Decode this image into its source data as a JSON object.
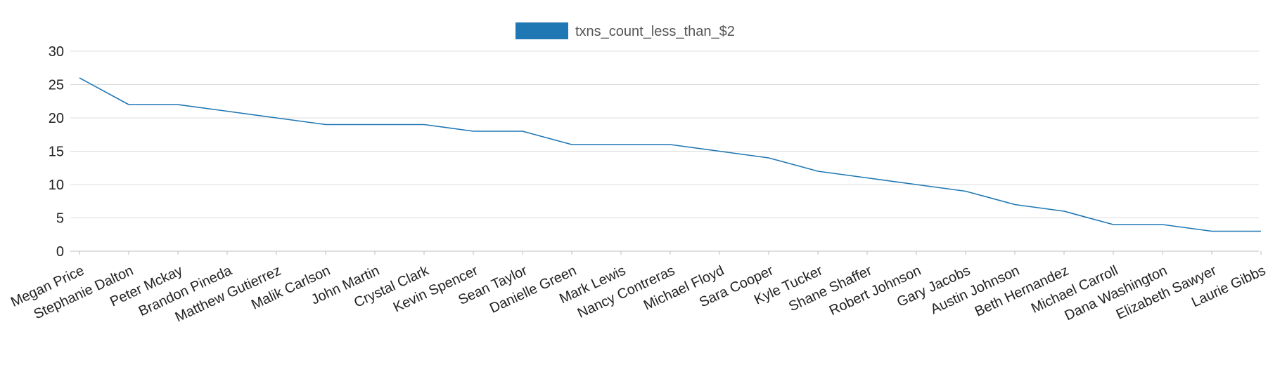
{
  "chart_data": {
    "type": "line",
    "categories": [
      "Megan Price",
      "Stephanie Dalton",
      "Peter Mckay",
      "Brandon Pineda",
      "Matthew Gutierrez",
      "Malik Carlson",
      "John Martin",
      "Crystal Clark",
      "Kevin Spencer",
      "Sean Taylor",
      "Danielle Green",
      "Mark Lewis",
      "Nancy Contreras",
      "Michael Floyd",
      "Sara Cooper",
      "Kyle Tucker",
      "Shane Shaffer",
      "Robert Johnson",
      "Gary Jacobs",
      "Austin Johnson",
      "Beth Hernandez",
      "Michael Carroll",
      "Dana Washington",
      "Elizabeth Sawyer",
      "Laurie Gibbs"
    ],
    "series": [
      {
        "name": "txns_count_less_than_$2",
        "color": "#1f77b4",
        "values": [
          26,
          22,
          22,
          21,
          20,
          19,
          19,
          19,
          18,
          18,
          16,
          16,
          16,
          15,
          14,
          12,
          11,
          10,
          9,
          7,
          6,
          4,
          4,
          3,
          3
        ]
      }
    ],
    "y_ticks": [
      "0",
      "5",
      "10",
      "15",
      "20",
      "25",
      "30"
    ],
    "ylim": [
      0,
      30
    ],
    "xlabel": "",
    "ylabel": "",
    "grid": true,
    "legend_position": "top-center"
  }
}
